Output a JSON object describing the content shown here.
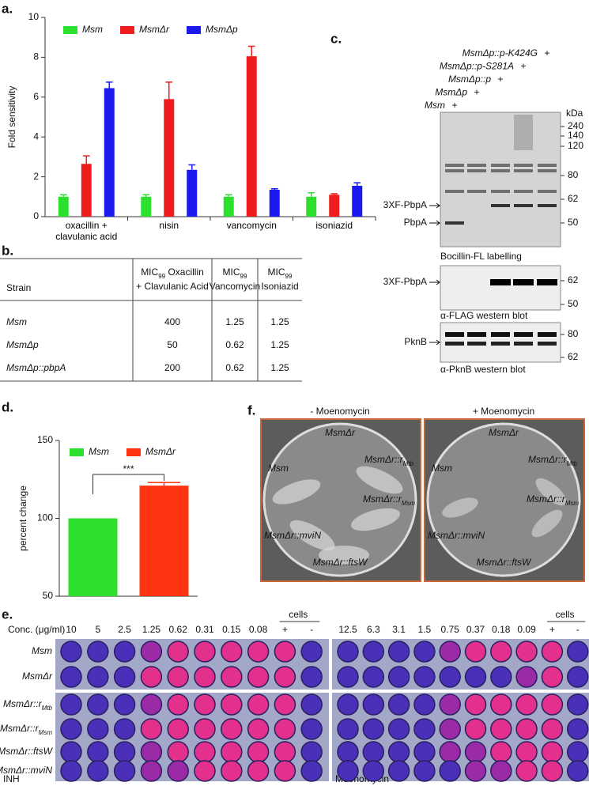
{
  "chart_data": [
    {
      "type": "bar",
      "label": "a.",
      "ylabel": "Fold sensitivity",
      "categories": [
        "oxacillin + clavulanic acid",
        "nisin",
        "vancomycin",
        "isoniazid"
      ],
      "series": [
        {
          "name": "Msm",
          "color": "#2ee02e",
          "values": [
            1,
            1,
            1,
            1
          ],
          "errors": [
            0.1,
            0.1,
            0.1,
            0.2
          ]
        },
        {
          "name": "MsmΔr",
          "color": "#ee1c1c",
          "values": [
            2.65,
            5.9,
            8.05,
            1.1
          ],
          "errors": [
            0.4,
            0.85,
            0.5,
            0.05
          ]
        },
        {
          "name": "MsmΔp",
          "color": "#1a1aee",
          "values": [
            6.45,
            2.35,
            1.35,
            1.55
          ],
          "errors": [
            0.3,
            0.25,
            0.05,
            0.15
          ]
        }
      ],
      "ylim": [
        0,
        10
      ],
      "yticks": [
        0,
        2,
        4,
        6,
        8,
        10
      ]
    },
    {
      "type": "bar",
      "label": "d.",
      "ylabel": "percent change",
      "categories": [
        null
      ],
      "series": [
        {
          "name": "Msm",
          "color": "#2ee02e",
          "values": [
            100
          ]
        },
        {
          "name": "MsmΔr",
          "color": "#ff3311",
          "values": [
            121
          ],
          "errors": [
            2
          ]
        }
      ],
      "ylim": [
        50,
        150
      ],
      "yticks": [
        50,
        100,
        150
      ],
      "annotation": "***"
    }
  ],
  "table": {
    "label": "b.",
    "header": [
      {
        "text": "Strain"
      },
      {
        "text": "MIC",
        "sub": "99",
        "lines": [
          "Oxacillin",
          "+ Clavulanic Acid"
        ]
      },
      {
        "text": "MIC",
        "sub": "99",
        "lines": [
          "Vancomycin"
        ]
      },
      {
        "text": "MIC",
        "sub": "99",
        "lines": [
          "Isoniazid"
        ]
      }
    ],
    "rows": [
      [
        "Msm",
        "400",
        "1.25",
        "1.25"
      ],
      [
        "MsmΔp",
        "50",
        "0.62",
        "1.25"
      ],
      [
        "MsmΔp::pbpA",
        "200",
        "0.62",
        "1.25"
      ]
    ]
  },
  "gel": {
    "label": "c.",
    "strains": [
      "MsmΔp::p-K424G",
      "MsmΔp::p-S281A",
      "MsmΔp::p",
      "MsmΔp",
      "Msm"
    ],
    "mark": "+",
    "unit": "kDa",
    "panels": [
      {
        "caption": "Bocillin-FL labelling",
        "markers": [
          "240",
          "140",
          "120",
          "80",
          "62",
          "50"
        ],
        "bands": [
          "3XF-PbpA",
          "PbpA"
        ]
      },
      {
        "caption": "α-FLAG western blot",
        "markers": [
          "62",
          "50"
        ],
        "bands": [
          "3XF-PbpA"
        ]
      },
      {
        "caption": "α-PknB western blot",
        "markers": [
          "80",
          "62"
        ],
        "bands": [
          "PknB"
        ]
      }
    ]
  },
  "plates": {
    "label": "f.",
    "panels": [
      {
        "title": "- Moenomycin"
      },
      {
        "title": "+ Moenomycin"
      }
    ],
    "strains": [
      {
        "name": "MsmΔr"
      },
      {
        "name": "MsmΔr::r",
        "sub": "Mtb"
      },
      {
        "name": "Msm"
      },
      {
        "name": "MsmΔr::r",
        "sub": "Msm"
      },
      {
        "name": "MsmΔr::mviN"
      },
      {
        "name": "MsmΔr::ftsW"
      }
    ]
  },
  "mic_plates": {
    "label": "e.",
    "conc_label": "Conc. (μg/ml)",
    "cells_label": "cells",
    "panels": [
      {
        "name": "INH",
        "concentrations": [
          "10",
          "5",
          "2.5",
          "1.25",
          "0.62",
          "0.31",
          "0.15",
          "0.08",
          "+",
          "-"
        ]
      },
      {
        "name": "Moenomycin",
        "concentrations": [
          "12.5",
          "6.3",
          "3.1",
          "1.5",
          "0.75",
          "0.37",
          "0.18",
          "0.09",
          "+",
          "-"
        ]
      }
    ],
    "rows": [
      {
        "name": "Msm"
      },
      {
        "name": "MsmΔr"
      },
      {
        "name": "MsmΔr::r",
        "sub": "Mtb"
      },
      {
        "name": "MsmΔr::r",
        "sub": "Msm"
      },
      {
        "name": "MsmΔr::ftsW"
      },
      {
        "name": "MsmΔr::mviN"
      }
    ]
  }
}
